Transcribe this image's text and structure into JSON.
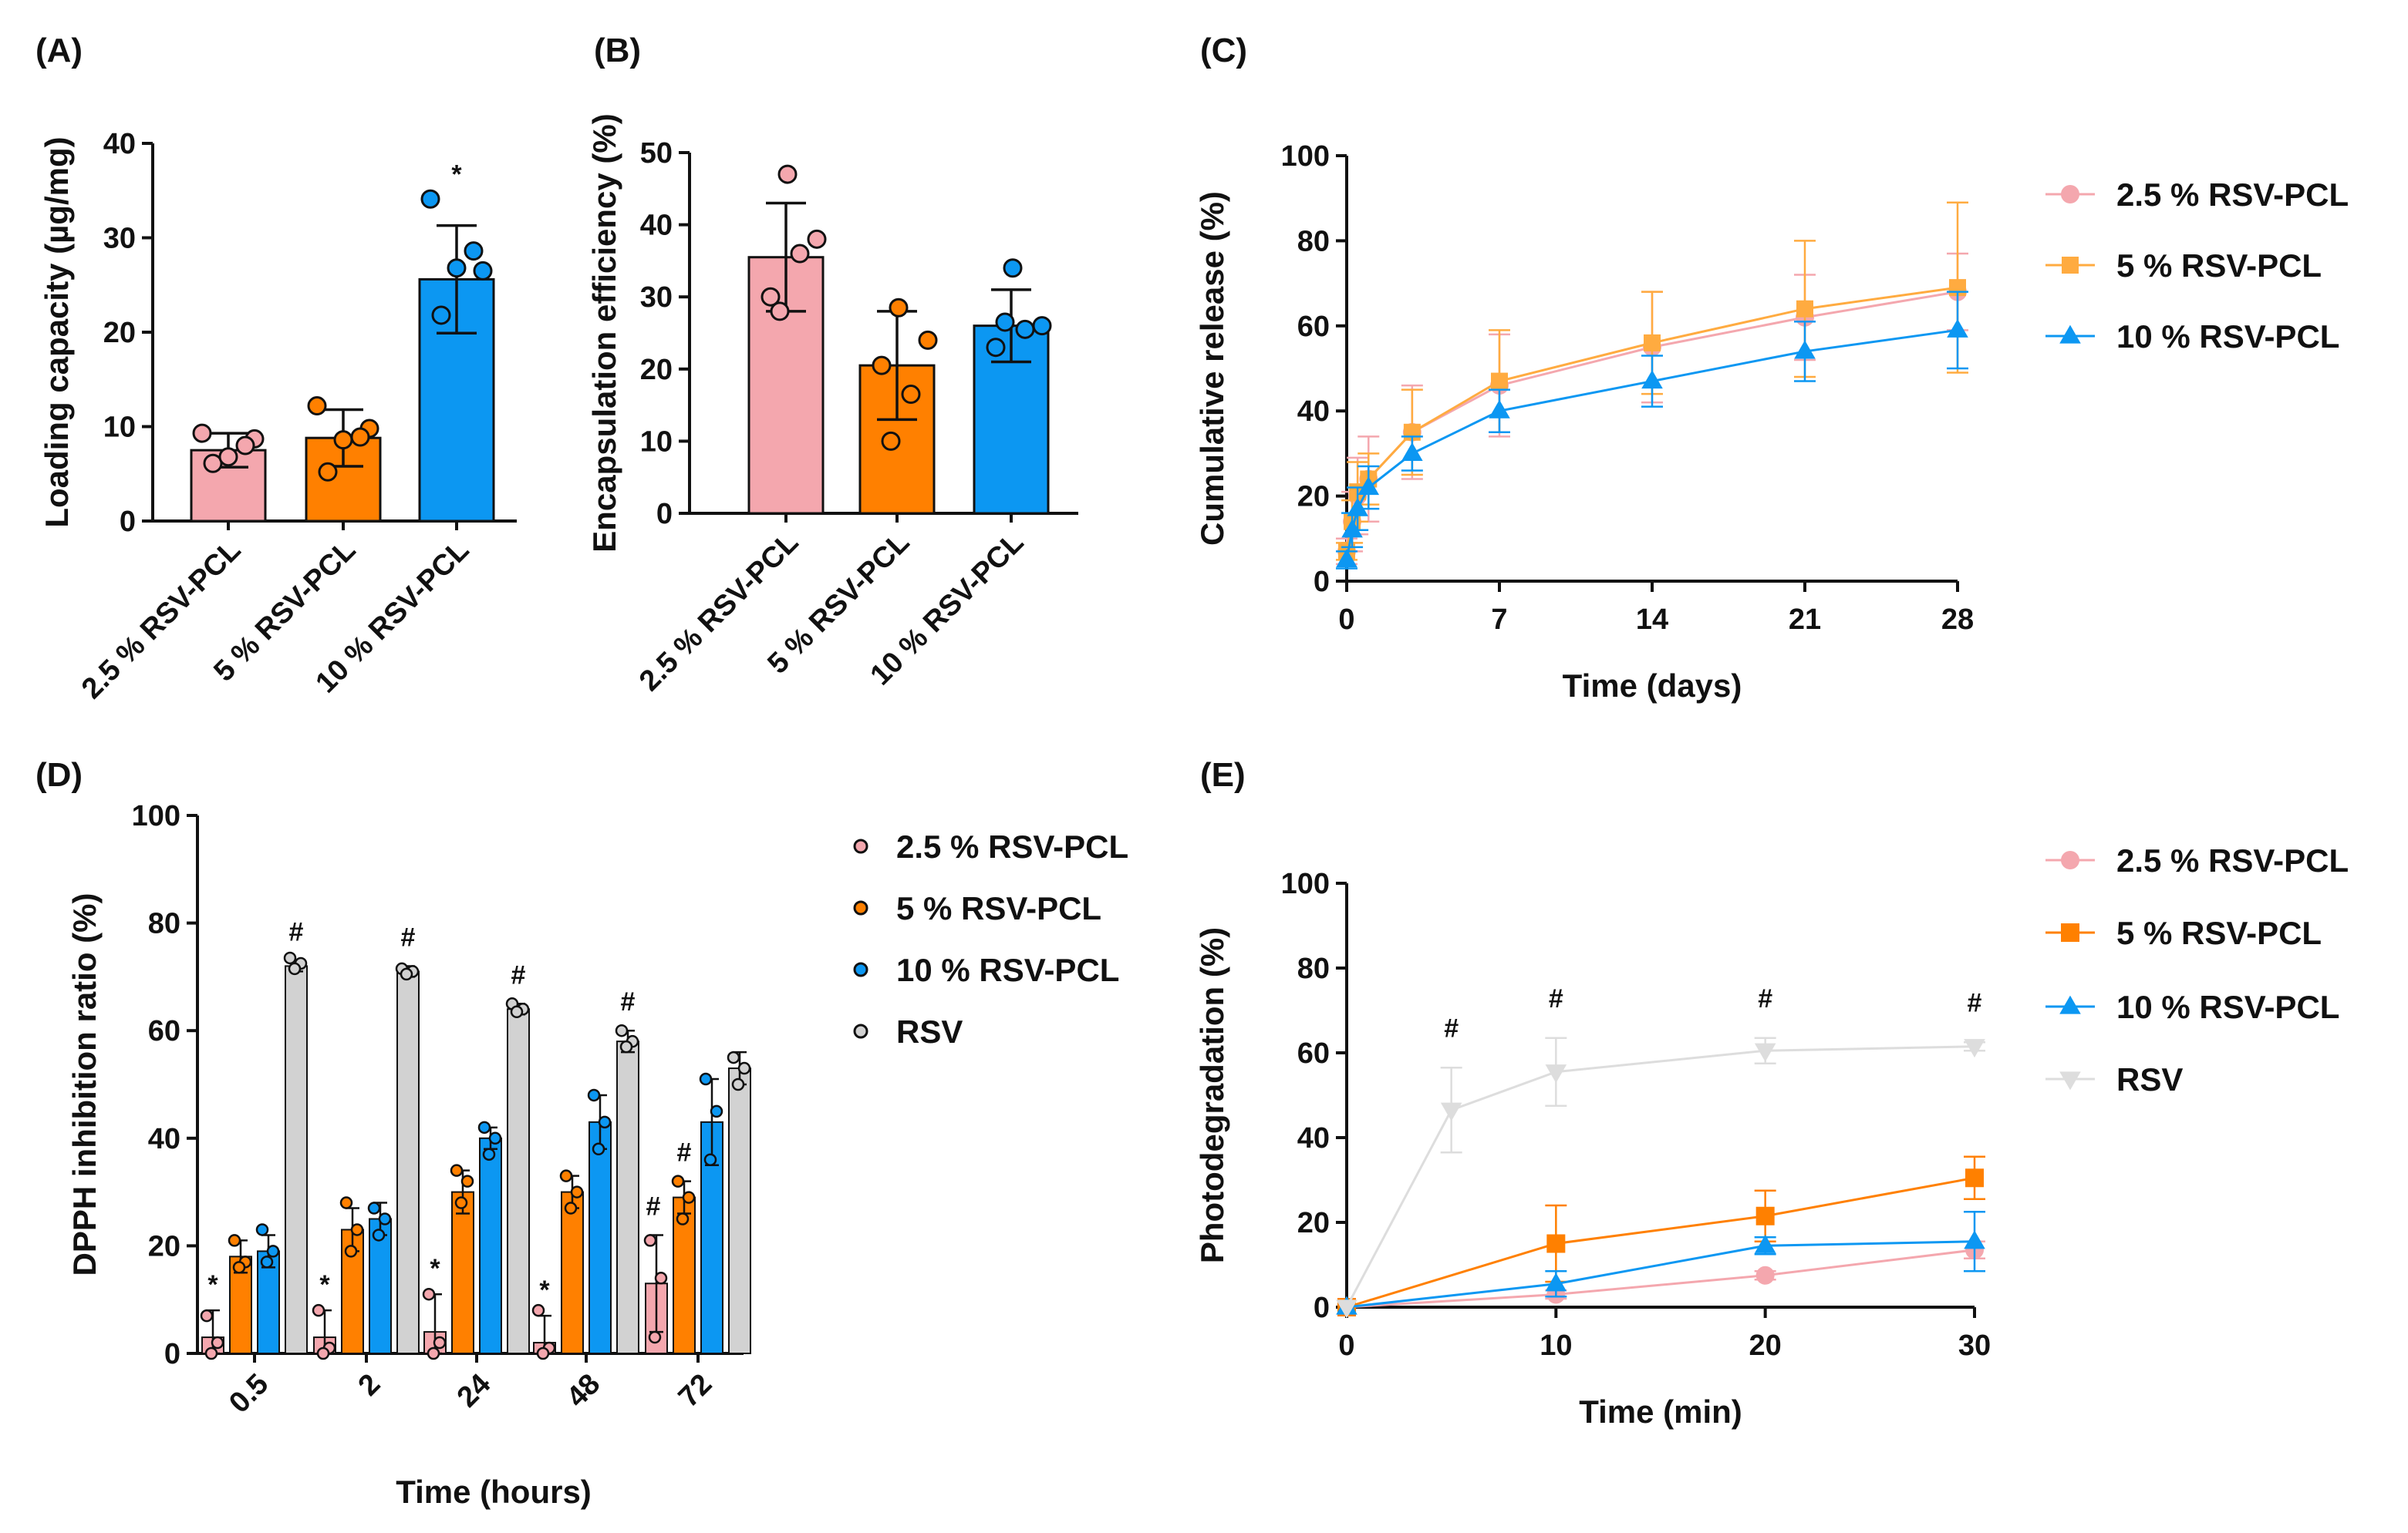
{
  "colors": {
    "pink": "#F4A7AE",
    "orange": "#FF8000",
    "blue": "#0C97F2",
    "grey": "#D2D2D2",
    "axis": "#111111",
    "pinkLine": "#F4A7AE",
    "greyLine": "#DDDDDD"
  },
  "chart_data": [
    {
      "panel": "(A)",
      "type": "bar",
      "categories": [
        "2.5 % RSV-PCL",
        "5 % RSV-PCL",
        "10 % RSV-PCL"
      ],
      "values": [
        7.5,
        8.8,
        25.6
      ],
      "errors": [
        1.8,
        3.0,
        5.7
      ],
      "points": [
        [
          9.3,
          8.7,
          6.1,
          8.0,
          6.8
        ],
        [
          12.2,
          9.8,
          5.2,
          8.9,
          8.6
        ],
        [
          34.1,
          26.5,
          21.8,
          28.6,
          26.8
        ]
      ],
      "colors": [
        "#F4A7AE",
        "#FF8000",
        "#0C97F2"
      ],
      "significance": [
        "",
        "",
        "*"
      ],
      "title": "",
      "xlabel": "",
      "ylabel": "Loading capacity (µg/mg)",
      "ylim": [
        0,
        40
      ],
      "yticks": [
        0,
        10,
        20,
        30,
        40
      ]
    },
    {
      "panel": "(B)",
      "type": "bar",
      "categories": [
        "2.5 % RSV-PCL",
        "5 % RSV-PCL",
        "10 % RSV-PCL"
      ],
      "values": [
        35.5,
        20.5,
        26.0
      ],
      "errors": [
        7.5,
        7.5,
        5.0
      ],
      "points": [
        [
          47,
          38,
          30,
          36,
          28
        ],
        [
          28.5,
          24,
          20.5,
          16.5,
          10
        ],
        [
          34,
          26,
          23,
          25.5,
          26.5
        ]
      ],
      "colors": [
        "#F4A7AE",
        "#FF8000",
        "#0C97F2"
      ],
      "significance": [
        "",
        "",
        ""
      ],
      "title": "",
      "xlabel": "",
      "ylabel": "Encapsulation efficiency (%)",
      "ylim": [
        0,
        50
      ],
      "yticks": [
        0,
        10,
        20,
        30,
        40,
        50
      ]
    },
    {
      "panel": "(C)",
      "type": "line",
      "x": [
        0,
        0.25,
        0.5,
        1,
        3,
        7,
        14,
        21,
        28
      ],
      "series": [
        {
          "name": "2.5 % RSV-PCL",
          "marker": "circle",
          "values": [
            7,
            14,
            20,
            24,
            35,
            46,
            55,
            62,
            68
          ],
          "errors": [
            3,
            7,
            9,
            10,
            11,
            12,
            13,
            10,
            9
          ]
        },
        {
          "name": "5 % RSV-PCL",
          "marker": "square",
          "values": [
            7,
            14,
            21,
            24,
            35,
            47,
            56,
            64,
            69
          ],
          "errors": [
            2,
            5,
            7,
            6,
            10,
            12,
            12,
            16,
            20
          ]
        },
        {
          "name": "10 % RSV-PCL",
          "marker": "triangle",
          "values": [
            5,
            12,
            17,
            22,
            30,
            40,
            47,
            54,
            59
          ],
          "errors": [
            2,
            4,
            5,
            5,
            4,
            5,
            6,
            7,
            9
          ]
        }
      ],
      "title": "",
      "xlabel": "Time (days)",
      "ylabel": "Cumulative release (%)",
      "xlim": [
        0,
        28
      ],
      "xticks": [
        0,
        7,
        14,
        21,
        28
      ],
      "ylim": [
        0,
        100
      ],
      "yticks": [
        0,
        20,
        40,
        60,
        80,
        100
      ],
      "legend": "right"
    },
    {
      "panel": "(D)",
      "type": "bar",
      "categories": [
        "0.5",
        "2",
        "24",
        "48",
        "72"
      ],
      "series": [
        {
          "name": "2.5 % RSV-PCL",
          "values": [
            3,
            3,
            4,
            2,
            13
          ],
          "errors": [
            5,
            5,
            7,
            5,
            9
          ],
          "points": [
            [
              7,
              2,
              0
            ],
            [
              8,
              1,
              0
            ],
            [
              11,
              2,
              0
            ],
            [
              8,
              1,
              0
            ],
            [
              21,
              14,
              3
            ]
          ],
          "significance": [
            "*",
            "*",
            "*",
            "*",
            "#"
          ]
        },
        {
          "name": "5 % RSV-PCL",
          "values": [
            18,
            23,
            30,
            30,
            29
          ],
          "errors": [
            3,
            4,
            4,
            3,
            3
          ],
          "points": [
            [
              21,
              17,
              16
            ],
            [
              28,
              23,
              19
            ],
            [
              34,
              32,
              28
            ],
            [
              33,
              30,
              27
            ],
            [
              32,
              29,
              25
            ]
          ],
          "significance": [
            "",
            "",
            "",
            "",
            "#"
          ]
        },
        {
          "name": "10 % RSV-PCL",
          "values": [
            19,
            25,
            40,
            43,
            43
          ],
          "errors": [
            3,
            3,
            2,
            5,
            8
          ],
          "points": [
            [
              23,
              19,
              17
            ],
            [
              27,
              25,
              22
            ],
            [
              42,
              40,
              37
            ],
            [
              48,
              43,
              38
            ],
            [
              51,
              45,
              36
            ]
          ],
          "significance": [
            "",
            "",
            "",
            "",
            ""
          ]
        },
        {
          "name": "RSV",
          "values": [
            72,
            71,
            64,
            58,
            53
          ],
          "errors": [
            1,
            1,
            1,
            2,
            3
          ],
          "points": [
            [
              73.5,
              72.5,
              71.5
            ],
            [
              71.5,
              71,
              70.5
            ],
            [
              65,
              64,
              63.5
            ],
            [
              60,
              58,
              57
            ],
            [
              55,
              53,
              50
            ]
          ],
          "significance": [
            "#",
            "#",
            "#",
            "#",
            ""
          ]
        }
      ],
      "colors": [
        "#F4A7AE",
        "#FF8000",
        "#0C97F2",
        "#D2D2D2"
      ],
      "title": "",
      "xlabel": "Time (hours)",
      "ylabel": "DPPH inhibition ratio (%)",
      "ylim": [
        0,
        100
      ],
      "yticks": [
        0,
        20,
        40,
        60,
        80,
        100
      ],
      "legend": "right"
    },
    {
      "panel": "(E)",
      "type": "line",
      "x": [
        0,
        5,
        10,
        20,
        30
      ],
      "series": [
        {
          "name": "2.5 % RSV-PCL",
          "marker": "circle",
          "values": [
            0,
            null,
            3,
            7.5,
            13.5
          ],
          "errors": [
            0,
            null,
            1,
            1,
            2
          ]
        },
        {
          "name": "5 % RSV-PCL",
          "marker": "square",
          "values": [
            0,
            null,
            15,
            21.5,
            30.5
          ],
          "errors": [
            0,
            null,
            9,
            6,
            5
          ]
        },
        {
          "name": "10 % RSV-PCL",
          "marker": "triangle",
          "values": [
            0,
            null,
            5.5,
            14.5,
            15.5
          ],
          "errors": [
            0,
            null,
            3,
            2,
            7
          ]
        },
        {
          "name": "RSV",
          "marker": "triangle-down",
          "values": [
            0,
            46.5,
            55.5,
            60.5,
            61.5
          ],
          "errors": [
            0,
            10,
            8,
            3,
            1
          ]
        }
      ],
      "significance": {
        "x": [
          5,
          10,
          20,
          30
        ],
        "label": "#"
      },
      "title": "",
      "xlabel": "Time (min)",
      "ylabel": "Photodegradation (%)",
      "xlim": [
        0,
        30
      ],
      "xticks": [
        0,
        10,
        20,
        30
      ],
      "ylim": [
        0,
        100
      ],
      "yticks": [
        0,
        20,
        40,
        60,
        80,
        100
      ],
      "legend": "right"
    }
  ]
}
